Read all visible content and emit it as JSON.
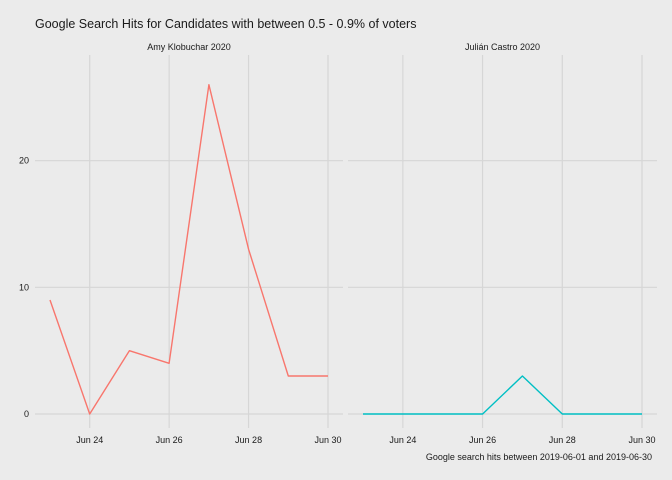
{
  "chart_data": {
    "type": "line",
    "title": "Google Search Hits for Candidates with between 0.5 - 0.9% of voters",
    "caption": "Google search hits between 2019-06-01 and 2019-06-30",
    "xlabel": "",
    "ylabel": "",
    "x": [
      "2019-06-23",
      "2019-06-24",
      "2019-06-25",
      "2019-06-26",
      "2019-06-27",
      "2019-06-28",
      "2019-06-29",
      "2019-06-30"
    ],
    "xlim": [
      "2019-06-23",
      "2019-06-30"
    ],
    "ylim": [
      0,
      27
    ],
    "x_ticks": [
      {
        "value": "2019-06-24",
        "label": "Jun 24"
      },
      {
        "value": "2019-06-26",
        "label": "Jun 26"
      },
      {
        "value": "2019-06-28",
        "label": "Jun 28"
      },
      {
        "value": "2019-06-30",
        "label": "Jun 30"
      }
    ],
    "y_ticks": [
      {
        "value": 0,
        "label": "0"
      },
      {
        "value": 10,
        "label": "10"
      },
      {
        "value": 20,
        "label": "20"
      }
    ],
    "grid": true,
    "legend": "none",
    "panels": [
      {
        "name": "Amy Klobuchar 2020",
        "color": "#f8766d",
        "values": [
          9,
          0,
          5,
          4,
          26,
          13,
          3,
          3
        ]
      },
      {
        "name": "Julián Castro 2020",
        "color": "#00bfc4",
        "values": [
          0,
          0,
          0,
          0,
          3,
          0,
          0,
          0
        ]
      }
    ]
  }
}
